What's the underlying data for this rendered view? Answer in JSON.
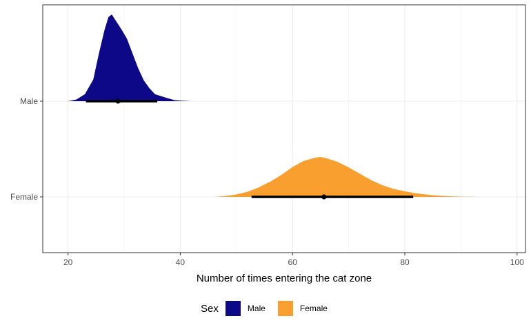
{
  "chart_data": {
    "type": "area",
    "xlabel": "Number of times entering the cat zone",
    "ylabel": "",
    "xlim": [
      15.5,
      101.5
    ],
    "x_ticks": [
      20,
      40,
      60,
      80,
      100
    ],
    "categories": [
      "Male",
      "Female"
    ],
    "grid": true,
    "legend": {
      "title": "Sex",
      "position": "bottom",
      "items": [
        "Male",
        "Female"
      ]
    },
    "series": [
      {
        "name": "Male",
        "color": "#0d0887",
        "density": [
          [
            20.0,
            0
          ],
          [
            21.5,
            0.02
          ],
          [
            23,
            0.08
          ],
          [
            24.5,
            0.25
          ],
          [
            25.5,
            0.55
          ],
          [
            26.5,
            0.82
          ],
          [
            27.2,
            0.97
          ],
          [
            27.8,
            1.0
          ],
          [
            28.5,
            0.93
          ],
          [
            29.5,
            0.83
          ],
          [
            30.5,
            0.72
          ],
          [
            31.5,
            0.55
          ],
          [
            32.5,
            0.38
          ],
          [
            33.5,
            0.24
          ],
          [
            34.5,
            0.15
          ],
          [
            35.5,
            0.08
          ],
          [
            37,
            0.05
          ],
          [
            38,
            0.03
          ],
          [
            39,
            0.012
          ],
          [
            40,
            0.007
          ],
          [
            42,
            0
          ]
        ],
        "median": 28.9,
        "interval": [
          23.2,
          35.9
        ]
      },
      {
        "name": "Female",
        "color": "#f99f2f",
        "density": [
          [
            46,
            0
          ],
          [
            48,
            0.02
          ],
          [
            50,
            0.06
          ],
          [
            52,
            0.13
          ],
          [
            54,
            0.24
          ],
          [
            56,
            0.38
          ],
          [
            58,
            0.55
          ],
          [
            60,
            0.75
          ],
          [
            62,
            0.9
          ],
          [
            64,
            0.98
          ],
          [
            65,
            1.0
          ],
          [
            66,
            0.97
          ],
          [
            68,
            0.88
          ],
          [
            70,
            0.74
          ],
          [
            72,
            0.58
          ],
          [
            74,
            0.42
          ],
          [
            76,
            0.29
          ],
          [
            78,
            0.2
          ],
          [
            80,
            0.14
          ],
          [
            82,
            0.09
          ],
          [
            84,
            0.055
          ],
          [
            86,
            0.03
          ],
          [
            88,
            0.015
          ],
          [
            90,
            0.006
          ],
          [
            93.5,
            0
          ]
        ],
        "median": 65.6,
        "interval": [
          52.7,
          81.5
        ]
      }
    ]
  }
}
